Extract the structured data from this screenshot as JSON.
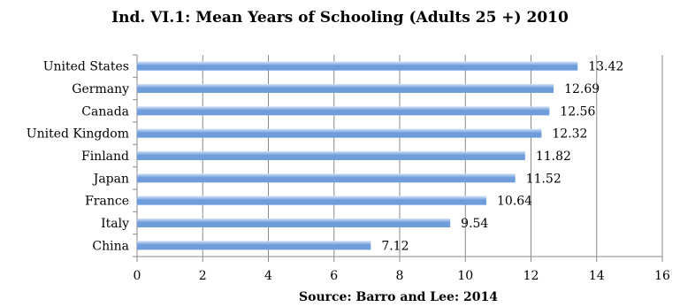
{
  "chart_data": {
    "type": "bar",
    "orientation": "horizontal",
    "title": "Ind. VI.1: Mean Years of Schooling (Adults 25 +) 2010",
    "source": "Source: Barro and Lee: 2014",
    "categories": [
      "United States",
      "Germany",
      "Canada",
      "United Kingdom",
      "Finland",
      "Japan",
      "France",
      "Italy",
      "China"
    ],
    "values": [
      13.42,
      12.69,
      12.56,
      12.32,
      11.82,
      11.52,
      10.64,
      9.54,
      7.12
    ],
    "value_labels": [
      "13.42",
      "12.69",
      "12.56",
      "12.32",
      "11.82",
      "11.52",
      "10.64",
      "9.54",
      "7.12"
    ],
    "xlim": [
      0,
      16
    ],
    "xticks": [
      0,
      2,
      4,
      6,
      8,
      10,
      12,
      14,
      16
    ],
    "grid": true,
    "bar_color": "#6f9ddb",
    "bar_highlight": "#cfe0f6"
  }
}
